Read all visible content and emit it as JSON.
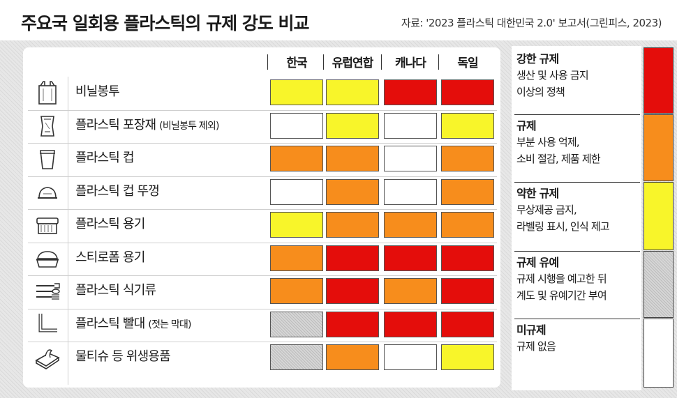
{
  "title": "주요국 일회용 플라스틱의 규제 강도 비교",
  "source": "자료: '2023 플라스틱 대한민국 2.0' 보고서(그린피스, 2023)",
  "levels": {
    "strong": {
      "title": "강한 규제",
      "desc": [
        "생산 및 사용 금지",
        "이상의 정책"
      ],
      "color": "#e40d0b"
    },
    "regulation": {
      "title": "규제",
      "desc": [
        "부분 사용 억제,",
        "소비 절감, 제품 제한"
      ],
      "color": "#f78d1c"
    },
    "weak": {
      "title": "약한 규제",
      "desc": [
        "무상제공 금지,",
        "라벨링 표시, 인식 제고"
      ],
      "color": "#f8f52a"
    },
    "grace": {
      "title": "규제 유예",
      "desc": [
        "규제 시행을 예고한 뒤",
        "계도 및 유예기간 부여"
      ],
      "color": "#d6d6d6"
    },
    "none": {
      "title": "미규제",
      "desc": [
        "규제 없음"
      ],
      "color": "#ffffff"
    }
  },
  "chart_data": {
    "type": "table",
    "title": "주요국 일회용 플라스틱의 규제 강도 비교",
    "countries": [
      "한국",
      "유럽연합",
      "캐나다",
      "독일"
    ],
    "legend_order": [
      "strong",
      "regulation",
      "weak",
      "grace",
      "none"
    ],
    "rows": [
      {
        "label": "비닐봉투",
        "note": "",
        "icon": "plastic-bag-icon",
        "values": [
          "weak",
          "weak",
          "strong",
          "strong"
        ]
      },
      {
        "label": "플라스틱 포장재",
        "note": "(비닐봉투 제외)",
        "icon": "packaging-icon",
        "values": [
          "none",
          "weak",
          "none",
          "weak"
        ]
      },
      {
        "label": "플라스틱 컵",
        "note": "",
        "icon": "cup-icon",
        "values": [
          "regulation",
          "regulation",
          "none",
          "regulation"
        ]
      },
      {
        "label": "플라스틱 컵 뚜껑",
        "note": "",
        "icon": "cup-lid-icon",
        "values": [
          "none",
          "regulation",
          "none",
          "regulation"
        ]
      },
      {
        "label": "플라스틱 용기",
        "note": "",
        "icon": "container-icon",
        "values": [
          "weak",
          "regulation",
          "regulation",
          "regulation"
        ]
      },
      {
        "label": "스티로폼 용기",
        "note": "",
        "icon": "foam-container-icon",
        "values": [
          "regulation",
          "strong",
          "strong",
          "strong"
        ]
      },
      {
        "label": "플라스틱 식기류",
        "note": "",
        "icon": "cutlery-icon",
        "values": [
          "regulation",
          "strong",
          "regulation",
          "strong"
        ]
      },
      {
        "label": "플라스틱 빨대",
        "note": "(젓는 막대)",
        "icon": "straw-icon",
        "values": [
          "grace",
          "strong",
          "strong",
          "strong"
        ]
      },
      {
        "label": "물티슈 등 위생용품",
        "note": "",
        "icon": "wet-wipes-icon",
        "values": [
          "grace",
          "regulation",
          "none",
          "weak"
        ]
      }
    ]
  }
}
